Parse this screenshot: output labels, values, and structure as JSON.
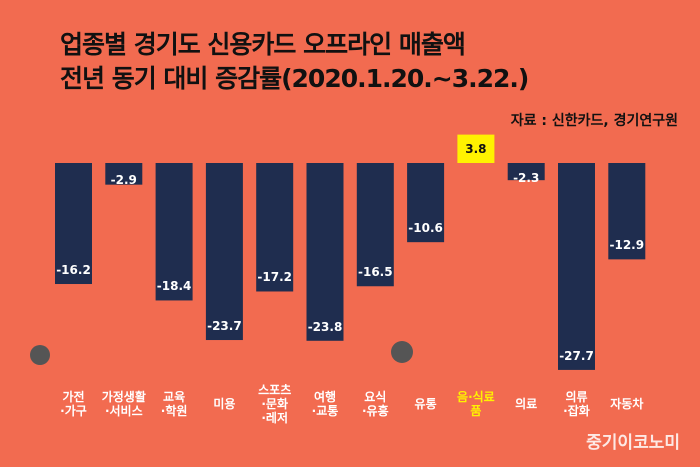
{
  "chart_data": {
    "type": "bar",
    "title": "업종별 경기도 신용카드 오프라인 매출액\n전년 동기 대비 증감률(2020.1.20.~3.22.)",
    "source": "자료 : 신한카드, 경기연구원",
    "watermark": "중기이코노미",
    "categories": [
      "가전\n·가구",
      "가정생활\n·서비스",
      "교육\n·학원",
      "미용",
      "스포츠\n·문화\n·레저",
      "여행\n·교통",
      "요식\n·유흥",
      "유통",
      "음·식료\n품",
      "의료",
      "의류\n·잡화",
      "자동차"
    ],
    "values": [
      -16.2,
      -2.9,
      -18.4,
      -23.7,
      -17.2,
      -23.8,
      -16.5,
      -10.6,
      3.8,
      -2.3,
      -27.7,
      -12.9
    ],
    "color": "#1f2d4f",
    "colors": [
      "#1f2d4f",
      "#1f2d4f",
      "#1f2d4f",
      "#1f2d4f",
      "#1f2d4f",
      "#1f2d4f",
      "#1f2d4f",
      "#1f2d4f",
      "#fff200",
      "#1f2d4f",
      "#1f2d4f",
      "#1f2d4f"
    ]
  }
}
